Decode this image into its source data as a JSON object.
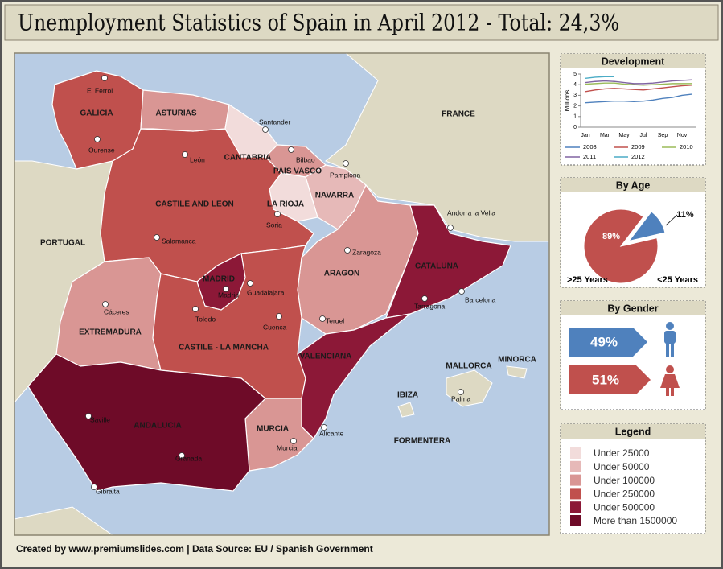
{
  "title": "Unemployment Statistics of Spain in April 2012 - Total: 24,3%",
  "footer": "Created by www.premiumslides.com | Data Source: EU / Spanish Government",
  "map": {
    "land_color": "#ddd9c3",
    "sea_color": "#b8cce4",
    "regions": [
      {
        "name": "CASTILE AND LEON",
        "color": "#c0504d"
      },
      {
        "name": "GALICIA",
        "color": "#c0504d"
      },
      {
        "name": "ASTURIAS",
        "color": "#d99694"
      },
      {
        "name": "CANTABRIA",
        "color": "#f2dcdb"
      },
      {
        "name": "PAIS VASCO",
        "color": "#d99694"
      },
      {
        "name": "NAVARRA",
        "color": "#e6b9b8"
      },
      {
        "name": "LA RIOJA",
        "color": "#f2dcdb"
      },
      {
        "name": "ARAGON",
        "color": "#d99694"
      },
      {
        "name": "CATALUNA",
        "color": "#8c1837"
      },
      {
        "name": "EXTREMADURA",
        "color": "#d99694"
      },
      {
        "name": "CASTILE - LA MANCHA",
        "color": "#c0504d"
      },
      {
        "name": "MADRID",
        "color": "#8c1837"
      },
      {
        "name": "VALENCIANA",
        "color": "#8c1837"
      },
      {
        "name": "MURCIA",
        "color": "#d99694"
      },
      {
        "name": "ANDALUCIA",
        "color": "#6e0b28"
      }
    ],
    "places": [
      "PORTUGAL",
      "FRANCE",
      "MALLORCA",
      "MINORCA",
      "IBIZA",
      "FORMENTERA"
    ],
    "cities": [
      "El Ferrol",
      "Ourense",
      "León",
      "Santander",
      "Bilbao",
      "Pamplona",
      "Soria",
      "Salamanca",
      "Zaragoza",
      "Madrid",
      "Guadalajara",
      "Toledo",
      "Cuenca",
      "Cáceres",
      "Teruel",
      "Tarragona",
      "Barcelona",
      "Andorra la Vella",
      "Palma",
      "Alicante",
      "Murcia",
      "Saville",
      "Granada",
      "Gibralta"
    ]
  },
  "chart_data": [
    {
      "type": "line",
      "title": "Development",
      "y_label": "Millions",
      "categories": [
        "Jan",
        null,
        "Mar",
        null,
        "May",
        null,
        "Jul",
        null,
        "Sep",
        null,
        "Nov",
        null
      ],
      "ylim": [
        0,
        5
      ],
      "yticks": [
        0,
        1,
        2,
        3,
        4,
        5
      ],
      "series": [
        {
          "name": "2008",
          "color": "#4f81bd",
          "values": [
            2.3,
            2.35,
            2.4,
            2.45,
            2.45,
            2.4,
            2.45,
            2.55,
            2.7,
            2.8,
            3.0,
            3.1
          ]
        },
        {
          "name": "2009",
          "color": "#c0504d",
          "values": [
            3.35,
            3.5,
            3.6,
            3.65,
            3.6,
            3.55,
            3.5,
            3.6,
            3.7,
            3.8,
            3.9,
            3.95
          ]
        },
        {
          "name": "2010",
          "color": "#9bbb59",
          "values": [
            4.05,
            4.1,
            4.15,
            4.15,
            4.05,
            4.0,
            3.95,
            4.0,
            4.05,
            4.1,
            4.1,
            4.1
          ]
        },
        {
          "name": "2011",
          "color": "#8064a2",
          "values": [
            4.2,
            4.3,
            4.35,
            4.3,
            4.2,
            4.1,
            4.1,
            4.15,
            4.25,
            4.35,
            4.4,
            4.45
          ]
        },
        {
          "name": "2012",
          "color": "#4bacc6",
          "values": [
            4.6,
            4.7,
            4.75,
            4.75,
            null,
            null,
            null,
            null,
            null,
            null,
            null,
            null
          ]
        }
      ]
    },
    {
      "type": "pie",
      "title": "By Age",
      "categories": [
        ">25 Years",
        "<25 Years"
      ],
      "values": [
        89,
        11
      ],
      "value_labels": [
        "89%",
        "11%"
      ],
      "colors": [
        "#c0504d",
        "#4f81bd"
      ]
    },
    {
      "type": "arrow-bar",
      "title": "By Gender",
      "values": [
        49,
        51
      ],
      "value_labels": [
        "49%",
        "51%"
      ],
      "colors": [
        "#4f81bd",
        "#c0504d"
      ]
    }
  ],
  "legend": {
    "title": "Legend",
    "items": [
      {
        "label": "Under 25000",
        "color": "#f2dcdb"
      },
      {
        "label": "Under 50000",
        "color": "#e6b9b8"
      },
      {
        "label": "Under 100000",
        "color": "#d99694"
      },
      {
        "label": "Under 250000",
        "color": "#c0504d"
      },
      {
        "label": "Under 500000",
        "color": "#8c1837"
      },
      {
        "label": "More than 1500000",
        "color": "#6e0b28"
      }
    ]
  }
}
